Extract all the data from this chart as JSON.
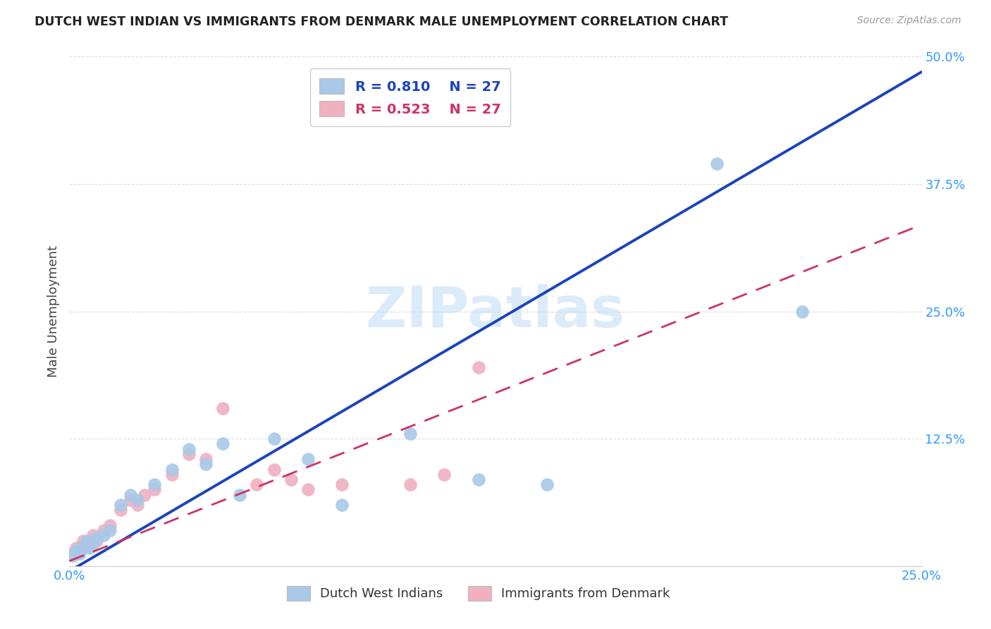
{
  "title": "DUTCH WEST INDIAN VS IMMIGRANTS FROM DENMARK MALE UNEMPLOYMENT CORRELATION CHART",
  "source": "Source: ZipAtlas.com",
  "ylabel": "Male Unemployment",
  "xlim": [
    0.0,
    0.25
  ],
  "ylim": [
    0.0,
    0.5
  ],
  "xtick_positions": [
    0.0,
    0.05,
    0.1,
    0.15,
    0.2,
    0.25
  ],
  "xticklabels": [
    "0.0%",
    "",
    "",
    "",
    "",
    "25.0%"
  ],
  "ytick_positions": [
    0.0,
    0.125,
    0.25,
    0.375,
    0.5
  ],
  "yticklabels": [
    "",
    "12.5%",
    "25.0%",
    "37.5%",
    "50.0%"
  ],
  "blue_R": "0.810",
  "blue_N": "27",
  "pink_R": "0.523",
  "pink_N": "27",
  "legend_label_blue": "Dutch West Indians",
  "legend_label_pink": "Immigrants from Denmark",
  "watermark": "ZIPatlas",
  "blue_color": "#a8c8e8",
  "pink_color": "#f0b0c0",
  "blue_line_color": "#1a44bb",
  "pink_line_color": "#cc3366",
  "tick_color": "#3399ff",
  "background_color": "#ffffff",
  "grid_color": "#dddddd",
  "blue_scatter_x": [
    0.001,
    0.002,
    0.003,
    0.004,
    0.005,
    0.006,
    0.007,
    0.008,
    0.01,
    0.012,
    0.015,
    0.018,
    0.02,
    0.025,
    0.03,
    0.035,
    0.04,
    0.045,
    0.05,
    0.06,
    0.07,
    0.08,
    0.1,
    0.12,
    0.14,
    0.19,
    0.215
  ],
  "blue_scatter_y": [
    0.01,
    0.015,
    0.012,
    0.02,
    0.025,
    0.018,
    0.022,
    0.028,
    0.03,
    0.035,
    0.06,
    0.07,
    0.065,
    0.08,
    0.095,
    0.115,
    0.1,
    0.12,
    0.07,
    0.125,
    0.105,
    0.06,
    0.13,
    0.085,
    0.08,
    0.395,
    0.25
  ],
  "pink_scatter_x": [
    0.001,
    0.002,
    0.003,
    0.004,
    0.005,
    0.006,
    0.007,
    0.008,
    0.01,
    0.012,
    0.015,
    0.018,
    0.02,
    0.022,
    0.025,
    0.03,
    0.035,
    0.04,
    0.045,
    0.055,
    0.06,
    0.065,
    0.07,
    0.08,
    0.1,
    0.11,
    0.12
  ],
  "pink_scatter_y": [
    0.012,
    0.018,
    0.015,
    0.025,
    0.022,
    0.02,
    0.03,
    0.025,
    0.035,
    0.04,
    0.055,
    0.065,
    0.06,
    0.07,
    0.075,
    0.09,
    0.11,
    0.105,
    0.155,
    0.08,
    0.095,
    0.085,
    0.075,
    0.08,
    0.08,
    0.09,
    0.195
  ],
  "blue_line_x0": 0.0,
  "blue_line_y0": -0.005,
  "blue_line_x1": 0.25,
  "blue_line_y1": 0.485,
  "pink_line_x0": 0.0,
  "pink_line_y0": 0.005,
  "pink_line_x1": 0.25,
  "pink_line_y1": 0.335
}
